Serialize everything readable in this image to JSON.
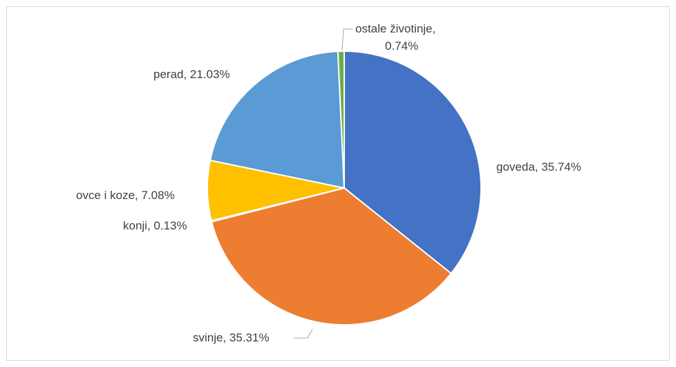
{
  "chart_data": {
    "type": "pie",
    "title": "",
    "slices": [
      {
        "label": "goveda, 35.74%",
        "name": "goveda",
        "value": 35.74,
        "color": "#4472C4"
      },
      {
        "label": "svinje, 35.31%",
        "name": "svinje",
        "value": 35.31,
        "color": "#ED7D31"
      },
      {
        "label": "konji, 0.13%",
        "name": "konji",
        "value": 0.13,
        "color": "#A5A5A5"
      },
      {
        "label": "ovce i koze, 7.08%",
        "name": "ovce i koze",
        "value": 7.08,
        "color": "#FFC000"
      },
      {
        "label": "perad, 21.03%",
        "name": "perad",
        "value": 21.03,
        "color": "#5B9BD5"
      },
      {
        "label_lines": [
          "ostale životinje,",
          "0.74%"
        ],
        "name": "ostale životinje",
        "value": 0.74,
        "color": "#70AD47"
      }
    ],
    "legend": "none",
    "data_labels": "outside"
  }
}
